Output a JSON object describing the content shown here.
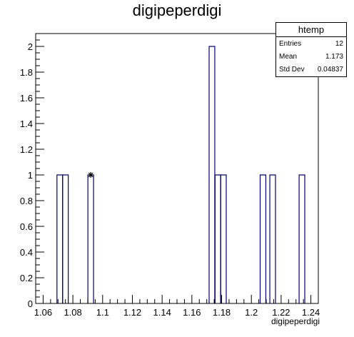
{
  "chart_data": {
    "type": "histogram",
    "title": "digipeperdigi",
    "xlabel": "digipeperdigi",
    "ylabel": "",
    "xlim": [
      1.055,
      1.245
    ],
    "ylim": [
      0,
      2.1
    ],
    "bin_width": 0.0038,
    "x_ticks": [
      "1.06",
      "1.08",
      "1.1",
      "1.12",
      "1.14",
      "1.16",
      "1.18",
      "1.2",
      "1.22",
      "1.24"
    ],
    "x_tick_values": [
      1.06,
      1.08,
      1.1,
      1.12,
      1.14,
      1.16,
      1.18,
      1.2,
      1.22,
      1.24
    ],
    "y_ticks": [
      "0",
      "0.2",
      "0.4",
      "0.6",
      "0.8",
      "1",
      "1.2",
      "1.4",
      "1.6",
      "1.8",
      "2"
    ],
    "y_tick_values": [
      0,
      0.2,
      0.4,
      0.6,
      0.8,
      1,
      1.2,
      1.4,
      1.6,
      1.8,
      2
    ],
    "bins": [
      {
        "x": 1.0712,
        "value": 1
      },
      {
        "x": 1.075,
        "value": 1
      },
      {
        "x": 1.092,
        "value": 1
      },
      {
        "x": 1.1735,
        "value": 2
      },
      {
        "x": 1.1775,
        "value": 1
      },
      {
        "x": 1.1812,
        "value": 1
      },
      {
        "x": 1.2078,
        "value": 1
      },
      {
        "x": 1.2143,
        "value": 1
      },
      {
        "x": 1.234,
        "value": 1
      }
    ],
    "marker": {
      "x": 1.092,
      "y": 1
    },
    "grid": false,
    "legend": "top-right"
  },
  "stats": {
    "name": "htemp",
    "rows": [
      {
        "label": "Entries",
        "value": "12"
      },
      {
        "label": "Mean",
        "value": "1.173"
      },
      {
        "label": "Std Dev",
        "value": "0.04837"
      }
    ]
  },
  "colors": {
    "histogram_line": "#000080",
    "axis": "#000000"
  }
}
